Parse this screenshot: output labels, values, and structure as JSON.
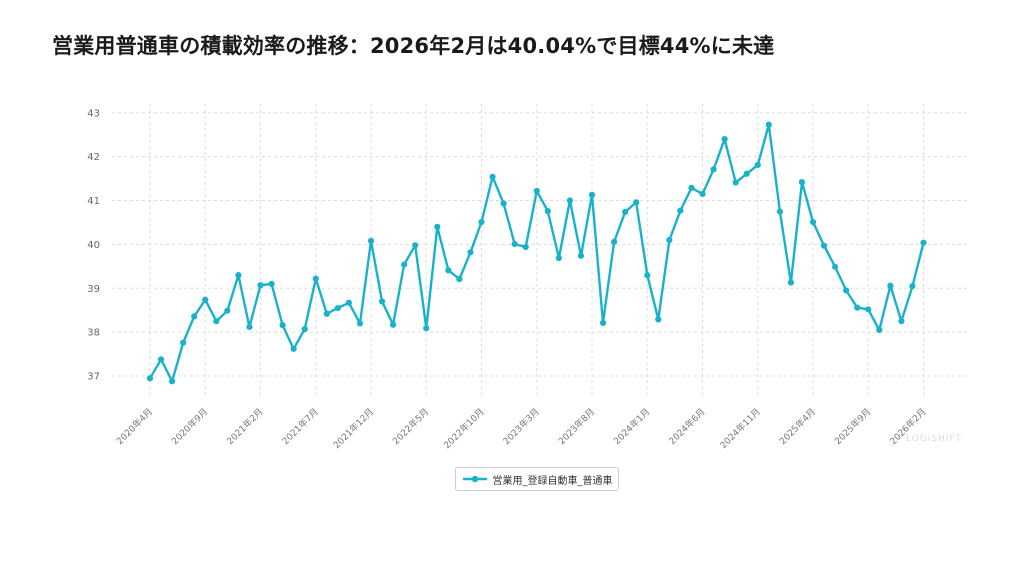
{
  "title": "営業用普通車の積載効率の推移：2026年2月は40.04%で目標44%に未達",
  "watermark": "LOGISHIFT",
  "colors": {
    "series": "#1ab2cb",
    "grid": "#dddddd"
  },
  "chart_data": {
    "type": "line",
    "title": "営業用普通車の積載効率の推移：2026年2月は40.04%で目標44%に未達",
    "xlabel": "",
    "ylabel": "",
    "ylim": [
      36.5,
      43.2
    ],
    "yticks": [
      37,
      38,
      39,
      40,
      41,
      42,
      43
    ],
    "xticks": [
      "2020年4月",
      "2020年9月",
      "2021年2月",
      "2021年7月",
      "2021年12月",
      "2022年5月",
      "2022年10月",
      "2023年3月",
      "2023年8月",
      "2024年1月",
      "2024年6月",
      "2024年11月",
      "2025年4月",
      "2025年9月",
      "2026年2月"
    ],
    "grid": true,
    "legend_position": "bottom-center",
    "x": [
      "2020年4月",
      "2020年5月",
      "2020年6月",
      "2020年7月",
      "2020年8月",
      "2020年9月",
      "2020年10月",
      "2020年11月",
      "2020年12月",
      "2021年1月",
      "2021年2月",
      "2021年3月",
      "2021年4月",
      "2021年5月",
      "2021年6月",
      "2021年7月",
      "2021年8月",
      "2021年9月",
      "2021年10月",
      "2021年11月",
      "2021年12月",
      "2022年1月",
      "2022年2月",
      "2022年3月",
      "2022年4月",
      "2022年5月",
      "2022年6月",
      "2022年7月",
      "2022年8月",
      "2022年9月",
      "2022年10月",
      "2022年11月",
      "2022年12月",
      "2023年1月",
      "2023年2月",
      "2023年3月",
      "2023年4月",
      "2023年5月",
      "2023年6月",
      "2023年7月",
      "2023年8月",
      "2023年9月",
      "2023年10月",
      "2023年11月",
      "2023年12月",
      "2024年1月",
      "2024年2月",
      "2024年3月",
      "2024年4月",
      "2024年5月",
      "2024年6月",
      "2024年7月",
      "2024年8月",
      "2024年9月",
      "2024年10月",
      "2024年11月",
      "2024年12月",
      "2025年1月",
      "2025年2月",
      "2025年3月",
      "2025年4月",
      "2025年5月",
      "2025年6月",
      "2025年7月",
      "2025年8月",
      "2025年9月",
      "2025年10月",
      "2025年11月",
      "2025年12月",
      "2026年1月",
      "2026年2月"
    ],
    "series": [
      {
        "name": "営業用_登録自動車_普通車",
        "values": [
          36.95,
          37.38,
          36.88,
          37.76,
          38.36,
          38.74,
          38.25,
          38.49,
          39.3,
          38.12,
          39.07,
          39.1,
          38.16,
          37.62,
          38.07,
          39.22,
          38.42,
          38.55,
          38.67,
          38.2,
          40.08,
          38.7,
          38.17,
          39.54,
          39.98,
          38.09,
          40.4,
          39.41,
          39.21,
          39.82,
          40.51,
          41.54,
          40.93,
          40.01,
          39.94,
          41.22,
          40.76,
          39.69,
          41.0,
          39.74,
          41.13,
          38.21,
          40.06,
          40.74,
          40.96,
          39.3,
          38.29,
          40.1,
          40.77,
          41.29,
          41.15,
          41.71,
          42.4,
          41.41,
          41.61,
          41.81,
          42.73,
          40.75,
          39.13,
          41.42,
          40.51,
          39.97,
          39.49,
          38.95,
          38.56,
          38.52,
          38.05,
          39.06,
          38.25,
          39.05,
          40.04
        ]
      }
    ]
  }
}
